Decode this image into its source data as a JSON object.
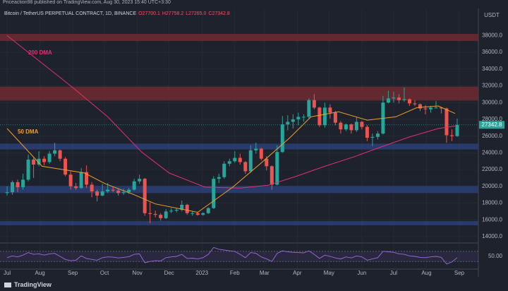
{
  "header": {
    "publisher": "Priceaction98 published on TradingView.com, Aug 30, 2023 15:40 UTC+3:30"
  },
  "footer": {
    "brand": "TradingView"
  },
  "chart_data": {
    "type": "candlestick",
    "title": "Bitcoin / TetherUS PERPETUAL CONTRACT, 1D, BINANCE",
    "ohlc_header": [
      {
        "value": 27700.1,
        "label": "O27700.1"
      },
      {
        "value": 27758.2,
        "label": "H27758.2"
      },
      {
        "value": 27265.0,
        "label": "L27265.0"
      },
      {
        "value": 27342.8,
        "label": "C27342.8"
      }
    ],
    "currency": "USDT",
    "up_color": "#26a69a",
    "down_color": "#ef5350",
    "x": [
      0,
      5,
      10,
      15,
      20,
      25,
      30,
      35,
      40,
      45,
      50,
      55,
      60,
      65,
      70,
      75,
      80,
      85,
      90,
      95,
      100,
      105,
      110,
      115,
      120,
      125,
      130,
      135,
      140,
      145,
      150,
      155,
      160,
      165,
      170,
      175,
      180,
      185,
      190,
      195,
      200,
      205,
      210,
      215,
      220,
      225,
      230,
      235,
      240,
      245,
      250,
      255,
      260,
      265,
      270,
      275,
      280,
      285,
      290,
      295,
      300,
      305,
      310,
      315,
      320,
      325,
      330,
      335,
      340,
      345,
      350,
      355,
      360,
      365,
      370,
      375,
      380,
      385,
      390,
      395,
      400,
      405,
      410,
      415,
      420,
      425
    ],
    "candles": [
      [
        19200,
        20000,
        18900,
        19300
      ],
      [
        19300,
        20700,
        19000,
        20500
      ],
      [
        20500,
        20800,
        19300,
        19900
      ],
      [
        19900,
        21500,
        19600,
        20800
      ],
      [
        20800,
        23800,
        20600,
        23200
      ],
      [
        23200,
        23400,
        21000,
        22600
      ],
      [
        22600,
        24200,
        22400,
        23300
      ],
      [
        23300,
        23600,
        22500,
        22900
      ],
      [
        22900,
        24200,
        22700,
        23900
      ],
      [
        23900,
        25200,
        23600,
        24300
      ],
      [
        24300,
        24400,
        23000,
        23300
      ],
      [
        23300,
        23500,
        21200,
        21400
      ],
      [
        21400,
        21800,
        19600,
        20000
      ],
      [
        20000,
        20400,
        19600,
        19800
      ],
      [
        19800,
        22200,
        19700,
        21700
      ],
      [
        21700,
        22500,
        19800,
        20200
      ],
      [
        20200,
        20500,
        18700,
        19400
      ],
      [
        19400,
        19600,
        18200,
        18900
      ],
      [
        18900,
        20300,
        18800,
        19400
      ],
      [
        19400,
        20400,
        19200,
        19600
      ],
      [
        19600,
        20000,
        19300,
        19500
      ],
      [
        19500,
        19700,
        18900,
        19200
      ],
      [
        19200,
        19700,
        19000,
        19300
      ],
      [
        19300,
        19800,
        19100,
        19600
      ],
      [
        19600,
        20900,
        19500,
        20600
      ],
      [
        20600,
        21400,
        20300,
        20900
      ],
      [
        20900,
        21000,
        16500,
        16800
      ],
      [
        16800,
        18100,
        15600,
        16700
      ],
      [
        16700,
        17100,
        16300,
        16600
      ],
      [
        16600,
        16800,
        15900,
        16200
      ],
      [
        16200,
        17300,
        16100,
        17000
      ],
      [
        17000,
        17400,
        16800,
        17100
      ],
      [
        17100,
        17400,
        16900,
        17200
      ],
      [
        17200,
        18300,
        17000,
        17800
      ],
      [
        17800,
        17900,
        16600,
        16800
      ],
      [
        16800,
        17000,
        16500,
        16800
      ],
      [
        16800,
        16900,
        16500,
        16600
      ],
      [
        16600,
        16900,
        16500,
        16800
      ],
      [
        16800,
        17500,
        16700,
        17400
      ],
      [
        17400,
        21200,
        17300,
        20900
      ],
      [
        20900,
        21500,
        20400,
        21100
      ],
      [
        21100,
        23000,
        20900,
        22700
      ],
      [
        22700,
        23300,
        22400,
        23000
      ],
      [
        23000,
        24200,
        22800,
        23400
      ],
      [
        23400,
        23900,
        22600,
        22900
      ],
      [
        22900,
        23000,
        21500,
        21800
      ],
      [
        21800,
        24900,
        21600,
        24300
      ],
      [
        24300,
        25200,
        23900,
        24500
      ],
      [
        24500,
        24600,
        23100,
        23300
      ],
      [
        23300,
        23600,
        21900,
        22400
      ],
      [
        22400,
        22500,
        19600,
        20200
      ],
      [
        20200,
        24900,
        20100,
        24100
      ],
      [
        24100,
        28400,
        24000,
        27400
      ],
      [
        27400,
        28500,
        26700,
        27700
      ],
      [
        27700,
        28600,
        26900,
        28000
      ],
      [
        28000,
        28800,
        27300,
        28300
      ],
      [
        28300,
        28600,
        27700,
        28300
      ],
      [
        28300,
        30500,
        28100,
        30300
      ],
      [
        30300,
        31000,
        29200,
        29400
      ],
      [
        29400,
        29500,
        27100,
        27300
      ],
      [
        27300,
        30000,
        27000,
        29400
      ],
      [
        29400,
        29800,
        28100,
        28800
      ],
      [
        28800,
        29000,
        27300,
        27600
      ],
      [
        27600,
        27800,
        26300,
        26800
      ],
      [
        26800,
        27500,
        26600,
        27400
      ],
      [
        27400,
        27500,
        26300,
        26700
      ],
      [
        26700,
        28300,
        26500,
        27700
      ],
      [
        27700,
        27800,
        26800,
        27100
      ],
      [
        27100,
        27300,
        25400,
        25800
      ],
      [
        25800,
        26300,
        24800,
        25900
      ],
      [
        25900,
        26600,
        25600,
        26300
      ],
      [
        26300,
        30800,
        26200,
        30000
      ],
      [
        30000,
        31400,
        29900,
        30500
      ],
      [
        30500,
        31300,
        30000,
        30600
      ],
      [
        30600,
        31000,
        29900,
        30300
      ],
      [
        30300,
        31800,
        30100,
        30400
      ],
      [
        30400,
        30500,
        29600,
        29900
      ],
      [
        29900,
        30300,
        29600,
        29800
      ],
      [
        29800,
        29900,
        29000,
        29300
      ],
      [
        29300,
        29700,
        28600,
        29200
      ],
      [
        29200,
        29600,
        28800,
        29400
      ],
      [
        29400,
        30200,
        29300,
        29400
      ],
      [
        29400,
        29500,
        28700,
        29300
      ],
      [
        29300,
        29400,
        25200,
        26100
      ],
      [
        26100,
        26800,
        25400,
        26000
      ],
      [
        26000,
        28100,
        25900,
        27342.8
      ]
    ],
    "xlim": [
      -6.7,
      445
    ],
    "xticks": [
      {
        "value": 0,
        "label": "Jul"
      },
      {
        "value": 31,
        "label": "Aug"
      },
      {
        "value": 62,
        "label": "Sep"
      },
      {
        "value": 92,
        "label": "Oct"
      },
      {
        "value": 123,
        "label": "Nov"
      },
      {
        "value": 153,
        "label": "Dec"
      },
      {
        "value": 184,
        "label": "2023"
      },
      {
        "value": 215,
        "label": "Feb"
      },
      {
        "value": 243,
        "label": "Mar"
      },
      {
        "value": 274,
        "label": "Apr"
      },
      {
        "value": 304,
        "label": "May"
      },
      {
        "value": 335,
        "label": "Jun"
      },
      {
        "value": 365,
        "label": "Jul"
      },
      {
        "value": 396,
        "label": "Aug"
      },
      {
        "value": 427,
        "label": "Sep"
      }
    ],
    "ylim": [
      13325,
      41150
    ],
    "yticks": [
      {
        "value": 14000,
        "label": "14000.0"
      },
      {
        "value": 16000,
        "label": "16000.0"
      },
      {
        "value": 18000,
        "label": "18000.0"
      },
      {
        "value": 20000,
        "label": "20000.0"
      },
      {
        "value": 22000,
        "label": "22000.0"
      },
      {
        "value": 24000,
        "label": "24000.0"
      },
      {
        "value": 26000,
        "label": "26000.0"
      },
      {
        "value": 28000,
        "label": "28000.0"
      },
      {
        "value": 30000,
        "label": "30000.0"
      },
      {
        "value": 32000,
        "label": "32000.0"
      },
      {
        "value": 34000,
        "label": "34000.0"
      },
      {
        "value": 36000,
        "label": "36000.0"
      },
      {
        "value": 38000,
        "label": "38000.0"
      }
    ],
    "grid": true,
    "last_price": 27342.8,
    "last_price_color": "#26a69a",
    "zones": [
      {
        "from": 37350,
        "to": 38200,
        "color": "#6e2a33"
      },
      {
        "from": 30250,
        "to": 31900,
        "color": "#6e2a33"
      },
      {
        "from": 24400,
        "to": 25100,
        "color": "#2c3f77"
      },
      {
        "from": 19200,
        "to": 20050,
        "color": "#2c3f77"
      },
      {
        "from": 15350,
        "to": 15850,
        "color": "#2c3f77"
      }
    ],
    "lines": [
      {
        "name": "200 DMA",
        "color": "#e0316e",
        "x": [
          0,
          20,
          60,
          95,
          127,
          153,
          187,
          220,
          247,
          273,
          300,
          327,
          353,
          380,
          407,
          423
        ],
        "values": [
          38000,
          36000,
          32000,
          28300,
          24100,
          21600,
          19900,
          19800,
          20150,
          21200,
          22400,
          23500,
          24700,
          25900,
          26900,
          27200
        ]
      },
      {
        "name": "50 DMA",
        "color": "#f0a028",
        "x": [
          0,
          33,
          53,
          73,
          93,
          120,
          140,
          180,
          213,
          240,
          267,
          287,
          313,
          340,
          367,
          387,
          407,
          423
        ],
        "values": [
          26900,
          22400,
          22000,
          21600,
          20300,
          19000,
          17900,
          16900,
          19900,
          22800,
          25800,
          28300,
          28900,
          27900,
          28300,
          29400,
          29600,
          28700
        ]
      }
    ],
    "rsi": {
      "color": "#9c6ade",
      "ylim": [
        0,
        100
      ],
      "yticks": [
        {
          "value": 50,
          "label": "50.00"
        }
      ],
      "bands": [
        30,
        70
      ],
      "values": [
        45,
        52,
        48,
        55,
        65,
        58,
        60,
        55,
        60,
        62,
        50,
        38,
        33,
        35,
        52,
        42,
        38,
        35,
        45,
        48,
        47,
        44,
        46,
        49,
        58,
        60,
        25,
        30,
        33,
        32,
        45,
        48,
        50,
        58,
        42,
        43,
        40,
        45,
        58,
        85,
        78,
        75,
        72,
        70,
        58,
        45,
        65,
        62,
        48,
        40,
        30,
        62,
        72,
        68,
        66,
        65,
        64,
        72,
        58,
        42,
        55,
        50,
        44,
        40,
        48,
        44,
        52,
        48,
        35,
        40,
        45,
        70,
        68,
        66,
        60,
        58,
        52,
        50,
        46,
        45,
        48,
        50,
        46,
        20,
        28,
        45
      ]
    }
  }
}
